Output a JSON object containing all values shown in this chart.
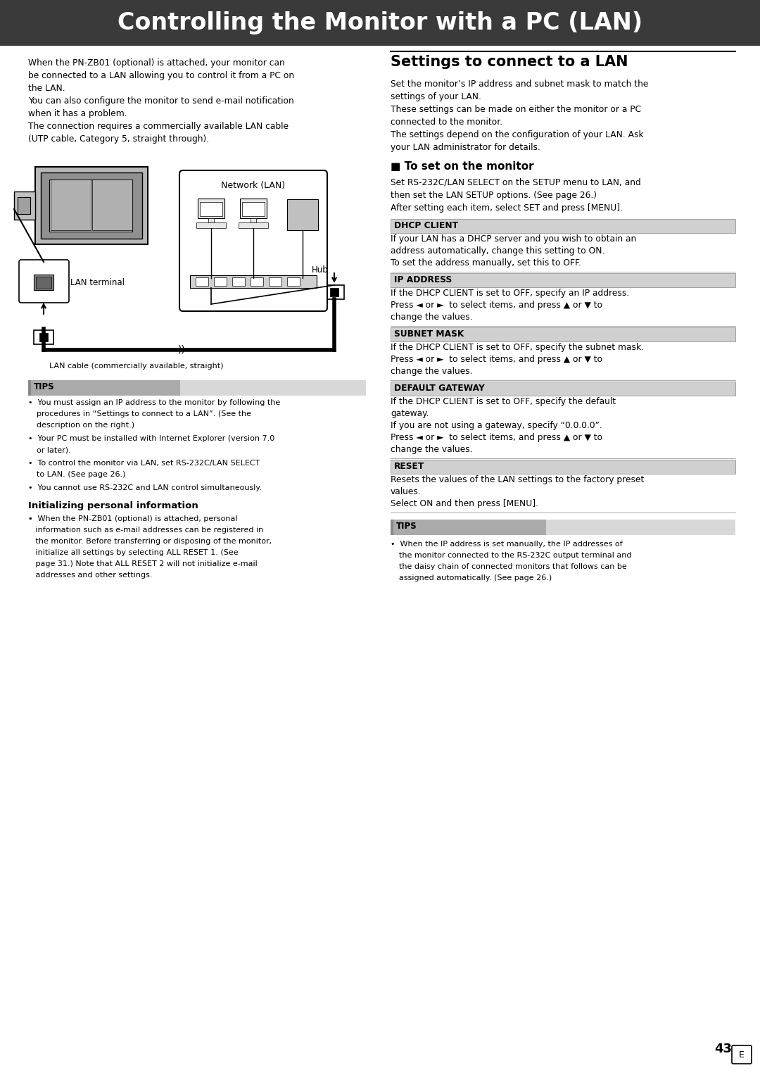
{
  "title": "Controlling the Monitor with a PC (LAN)",
  "title_bg": "#3a3a3a",
  "title_color": "#ffffff",
  "page_bg": "#ffffff",
  "intro_lines": [
    "When the PN-ZB01 (optional) is attached, your monitor can",
    "be connected to a LAN allowing you to control it from a PC on",
    "the LAN.",
    "You can also configure the monitor to send e-mail notification",
    "when it has a problem.",
    "The connection requires a commercially available LAN cable",
    "(UTP cable, Category 5, straight through)."
  ],
  "tips_items": [
    "You must assign an IP address to the monitor by following the\nprocedures in “Settings to connect to a LAN”. (See the\ndescription on the right.)",
    "Your PC must be installed with Internet Explorer (version 7.0\nor later).",
    "To control the monitor via LAN, set RS-232C/LAN SELECT\nto LAN. (See page 26.)",
    "You cannot use RS-232C and LAN control simultaneously."
  ],
  "init_header": "Initializing personal information",
  "init_lines": [
    "When the PN-ZB01 (optional) is attached, personal",
    "information such as e-mail addresses can be registered in",
    "the monitor. Before transferring or disposing of the monitor,",
    "initialize all settings by selecting ALL RESET 1. (See",
    "page 31.) Note that ALL RESET 2 will not initialize e-mail",
    "addresses and other settings."
  ],
  "right_title": "Settings to connect to a LAN",
  "right_intro_lines": [
    "Set the monitor’s IP address and subnet mask to match the",
    "settings of your LAN.",
    "These settings can be made on either the monitor or a PC",
    "connected to the monitor.",
    "The settings depend on the configuration of your LAN. Ask",
    "your LAN administrator for details."
  ],
  "to_set_header": "■ To set on the monitor",
  "to_set_lines": [
    "Set RS-232C/LAN SELECT on the SETUP menu to LAN, and",
    "then set the LAN SETUP options. (See page 26.)",
    "After setting each item, select SET and press [MENU]."
  ],
  "sections": [
    {
      "name": "DHCP CLIENT",
      "lines": [
        "If your LAN has a DHCP server and you wish to obtain an",
        "address automatically, change this setting to ON.",
        "To set the address manually, set this to OFF."
      ]
    },
    {
      "name": "IP ADDRESS",
      "lines": [
        "If the DHCP CLIENT is set to OFF, specify an IP address.",
        "Press ◄ or ►  to select items, and press ▲ or ▼ to",
        "change the values."
      ]
    },
    {
      "name": "SUBNET MASK",
      "lines": [
        "If the DHCP CLIENT is set to OFF, specify the subnet mask.",
        "Press ◄ or ►  to select items, and press ▲ or ▼ to",
        "change the values."
      ]
    },
    {
      "name": "DEFAULT GATEWAY",
      "lines": [
        "If the DHCP CLIENT is set to OFF, specify the default",
        "gateway.",
        "If you are not using a gateway, specify “0.0.0.0”.",
        "Press ◄ or ►  to select items, and press ▲ or ▼ to",
        "change the values."
      ]
    },
    {
      "name": "RESET",
      "lines": [
        "Resets the values of the LAN settings to the factory preset",
        "values.",
        "Select ON and then press [MENU]."
      ]
    }
  ],
  "right_tips_lines": [
    "When the IP address is set manually, the IP addresses of",
    "the monitor connected to the RS-232C output terminal and",
    "the daisy chain of connected monitors that follows can be",
    "assigned automatically. (See page 26.)"
  ],
  "page_number": "43",
  "section_header_bg": "#d0d0d0",
  "section_header_border": "#888888"
}
